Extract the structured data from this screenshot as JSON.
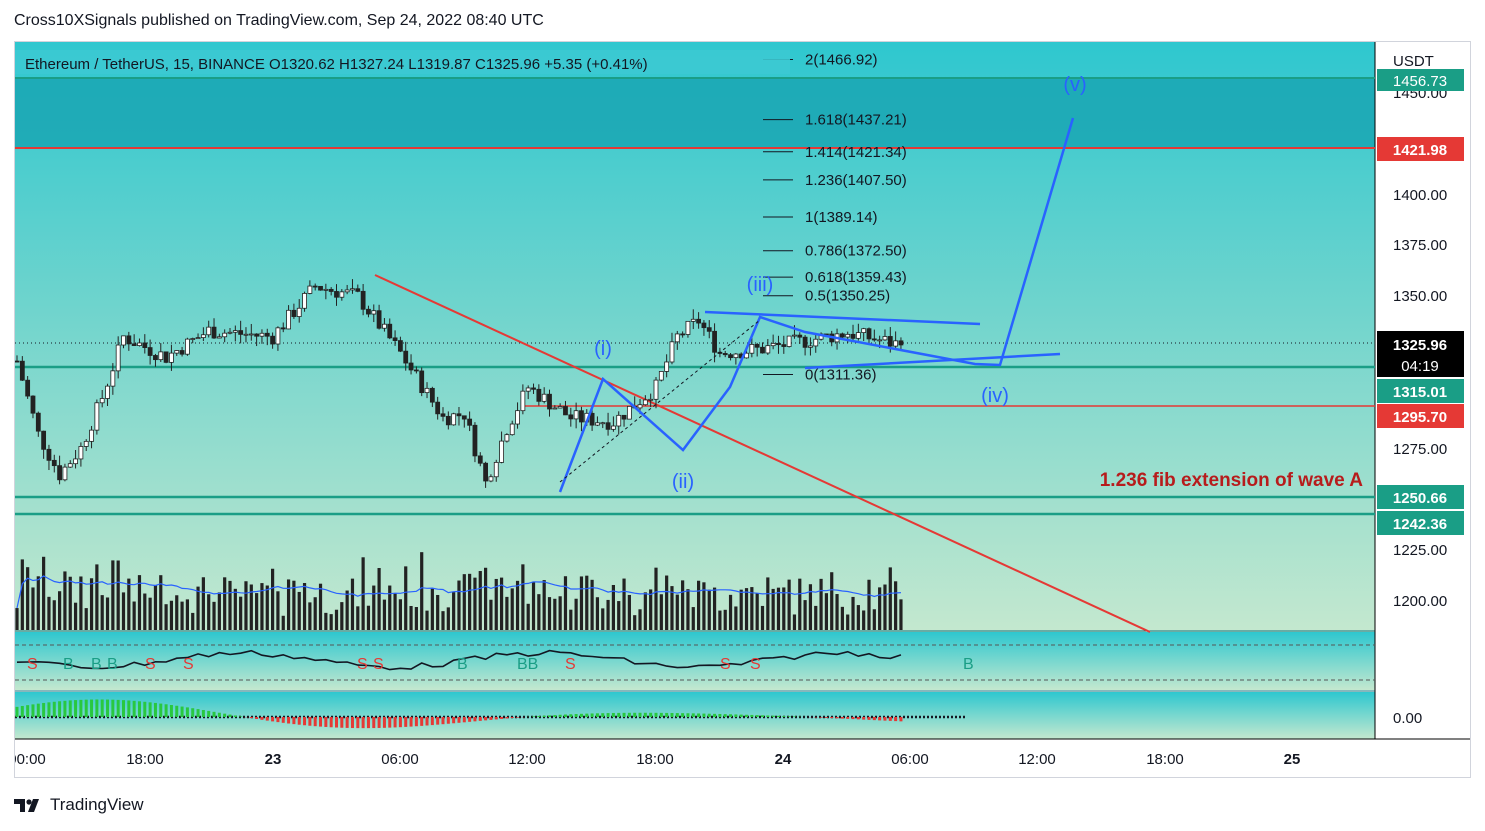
{
  "publisher_line": "Cross10XSignals published on TradingView.com, Sep 24, 2022 08:40 UTC",
  "brand": "TradingView",
  "header": {
    "symbol_line": "Ethereum / TetherUS, 15, BINANCE  O1320.62  H1327.24  L1319.87  C1325.96  +5.35 (+0.41%)"
  },
  "price_axis": {
    "unit": "USDT",
    "ticks": [
      "1450.00",
      "1400.00",
      "1375.00",
      "1350.00",
      "1275.00",
      "1225.00",
      "1200.00"
    ],
    "badges": {
      "top_partial": "1456.73",
      "resistance": "1421.98",
      "last": "1325.96",
      "countdown": "04:19",
      "support1": "1315.01",
      "red_level": "1295.70",
      "support2": "1250.66",
      "support3": "1242.36"
    },
    "oscillator_zero": "0.00"
  },
  "time_axis": [
    "00:00",
    "18:00",
    "23",
    "06:00",
    "12:00",
    "18:00",
    "24",
    "06:00",
    "12:00",
    "18:00",
    "25"
  ],
  "fib_levels": [
    {
      "label": "2(1466.92)"
    },
    {
      "label": "1.618(1437.21)"
    },
    {
      "label": "1.414(1421.34)"
    },
    {
      "label": "1.236(1407.50)"
    },
    {
      "label": "1(1389.14)"
    },
    {
      "label": "0.786(1372.50)"
    },
    {
      "label": "0.618(1359.43)"
    },
    {
      "label": "0.5(1350.25)"
    },
    {
      "label": "0(1311.36)"
    }
  ],
  "wave_labels": {
    "w1": "(i)",
    "w2": "(ii)",
    "w3": "(iii)",
    "w4": "(iv)",
    "w5": "(v)"
  },
  "annotation": "1.236 fib extension of wave A",
  "signals": [
    "S",
    "B",
    "B",
    "B",
    "S",
    "S",
    "S",
    "S",
    "B",
    "BB",
    "S",
    "S",
    "S",
    "B"
  ],
  "colors": {
    "up": "#26a69a",
    "down": "#ef5350",
    "wave": "#2962ff",
    "trendline": "#e53935",
    "support": "#1a9e86",
    "volume": "#222222",
    "volume_ma": "#2962ff"
  },
  "chart_data": {
    "type": "candlestick",
    "symbol": "Ethereum / TetherUS",
    "interval": "15",
    "exchange": "BINANCE",
    "ohlc_last": {
      "open": 1320.62,
      "high": 1327.24,
      "low": 1319.87,
      "close": 1325.96,
      "change": 5.35,
      "change_pct": 0.41
    },
    "y_unit": "USDT",
    "y_range": [
      1188,
      1468
    ],
    "x_range": [
      "Sep 22 15:00",
      "Sep 25 01:00"
    ],
    "horizontal_levels": [
      1456.73,
      1421.98,
      1315.01,
      1295.7,
      1250.66,
      1242.36
    ],
    "price_path": [
      {
        "t": "Sep 22 15:00",
        "price": 1318
      },
      {
        "t": "Sep 22 16:00",
        "price": 1282
      },
      {
        "t": "Sep 22 17:00",
        "price": 1262
      },
      {
        "t": "Sep 22 18:00",
        "price": 1275
      },
      {
        "t": "Sep 22 19:00",
        "price": 1300
      },
      {
        "t": "Sep 22 20:00",
        "price": 1330
      },
      {
        "t": "Sep 22 22:00",
        "price": 1320
      },
      {
        "t": "Sep 23 00:00",
        "price": 1333
      },
      {
        "t": "Sep 23 03:00",
        "price": 1330
      },
      {
        "t": "Sep 23 05:00",
        "price": 1355
      },
      {
        "t": "Sep 23 07:00",
        "price": 1350
      },
      {
        "t": "Sep 23 09:00",
        "price": 1322
      },
      {
        "t": "Sep 23 11:00",
        "price": 1290
      },
      {
        "t": "Sep 23 12:00",
        "price": 1292
      },
      {
        "t": "Sep 23 13:00",
        "price": 1258
      },
      {
        "t": "Sep 23 14:00",
        "price": 1285
      },
      {
        "t": "Sep 23 15:00",
        "price": 1305
      },
      {
        "t": "Sep 23 17:00",
        "price": 1290
      },
      {
        "t": "Sep 23 19:00",
        "price": 1288
      },
      {
        "t": "Sep 23 21:00",
        "price": 1305
      },
      {
        "t": "Sep 23 22:00",
        "price": 1330
      },
      {
        "t": "Sep 23 23:00",
        "price": 1338
      },
      {
        "t": "Sep 24 00:00",
        "price": 1322
      },
      {
        "t": "Sep 24 02:00",
        "price": 1324
      },
      {
        "t": "Sep 24 05:00",
        "price": 1330
      },
      {
        "t": "Sep 24 06:00",
        "price": 1332
      },
      {
        "t": "Sep 24 08:30",
        "price": 1325.96
      }
    ],
    "wave_projection": [
      {
        "label": "(iv) end",
        "t": "Sep 24 09:45",
        "price": 1317
      },
      {
        "label": "(v) target",
        "t": "Sep 24 13:30",
        "price": 1437
      }
    ]
  }
}
